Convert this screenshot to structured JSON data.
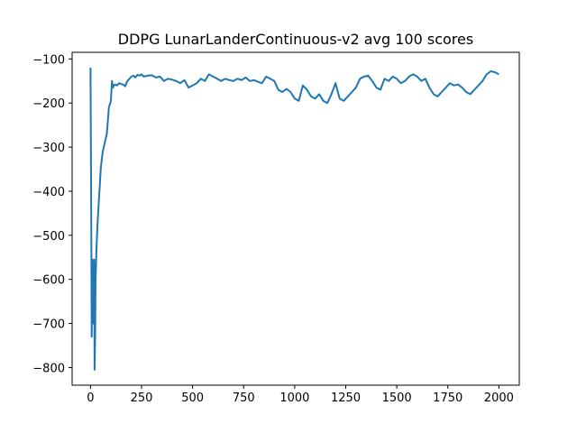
{
  "chart_data": {
    "type": "line",
    "title": "DDPG LunarLanderContinuous-v2 avg 100 scores",
    "xlabel": "",
    "ylabel": "",
    "xlim": [
      -90,
      2100
    ],
    "ylim": [
      -840,
      -85
    ],
    "xticks": [
      0,
      250,
      500,
      750,
      1000,
      1250,
      1500,
      1750,
      2000
    ],
    "xtick_labels": [
      "0",
      "250",
      "500",
      "750",
      "1000",
      "1250",
      "1500",
      "1750",
      "2000"
    ],
    "yticks": [
      -800,
      -700,
      -600,
      -500,
      -400,
      -300,
      -200,
      -100
    ],
    "ytick_labels": [
      "−800",
      "−700",
      "−600",
      "−500",
      "−400",
      "−300",
      "−200",
      "−100"
    ],
    "grid": false,
    "line_color": "#1f77b4",
    "series": [
      {
        "x": [
          0,
          4,
          6,
          9,
          12,
          15,
          18,
          20,
          23,
          25,
          30,
          35,
          40,
          45,
          50,
          55,
          60,
          70,
          80,
          90,
          100,
          105,
          110,
          115,
          120,
          130,
          140,
          150,
          160,
          170,
          180,
          200,
          210,
          220,
          230,
          240,
          250,
          260,
          280,
          300,
          320,
          340,
          360,
          380,
          400,
          420,
          440,
          460,
          480,
          500,
          520,
          540,
          560,
          580,
          600,
          620,
          640,
          660,
          680,
          700,
          720,
          740,
          760,
          780,
          800,
          820,
          840,
          860,
          880,
          900,
          920,
          940,
          960,
          980,
          1000,
          1020,
          1040,
          1060,
          1080,
          1100,
          1120,
          1140,
          1160,
          1180,
          1200,
          1220,
          1240,
          1260,
          1280,
          1300,
          1320,
          1340,
          1360,
          1380,
          1400,
          1420,
          1440,
          1460,
          1480,
          1500,
          1520,
          1540,
          1560,
          1580,
          1600,
          1620,
          1640,
          1660,
          1680,
          1700,
          1720,
          1740,
          1760,
          1780,
          1800,
          1820,
          1840,
          1860,
          1880,
          1900,
          1920,
          1940,
          1960,
          1980,
          2000
        ],
        "values": [
          -120,
          -500,
          -730,
          -555,
          -700,
          -650,
          -555,
          -805,
          -720,
          -600,
          -520,
          -470,
          -430,
          -390,
          -350,
          -330,
          -310,
          -290,
          -270,
          -210,
          -195,
          -150,
          -165,
          -160,
          -158,
          -160,
          -155,
          -157,
          -158,
          -162,
          -150,
          -140,
          -138,
          -142,
          -136,
          -138,
          -135,
          -140,
          -138,
          -137,
          -142,
          -140,
          -150,
          -145,
          -147,
          -150,
          -155,
          -148,
          -165,
          -160,
          -155,
          -145,
          -150,
          -135,
          -140,
          -145,
          -150,
          -145,
          -148,
          -150,
          -145,
          -148,
          -142,
          -150,
          -148,
          -152,
          -155,
          -140,
          -145,
          -150,
          -170,
          -175,
          -168,
          -175,
          -190,
          -195,
          -160,
          -170,
          -185,
          -190,
          -180,
          -195,
          -200,
          -180,
          -155,
          -190,
          -195,
          -185,
          -175,
          -165,
          -145,
          -140,
          -138,
          -150,
          -165,
          -170,
          -145,
          -150,
          -140,
          -145,
          -155,
          -150,
          -140,
          -135,
          -140,
          -150,
          -145,
          -165,
          -180,
          -185,
          -175,
          -165,
          -155,
          -160,
          -158,
          -165,
          -175,
          -180,
          -170,
          -160,
          -150,
          -135,
          -128,
          -130,
          -135
        ]
      }
    ]
  }
}
